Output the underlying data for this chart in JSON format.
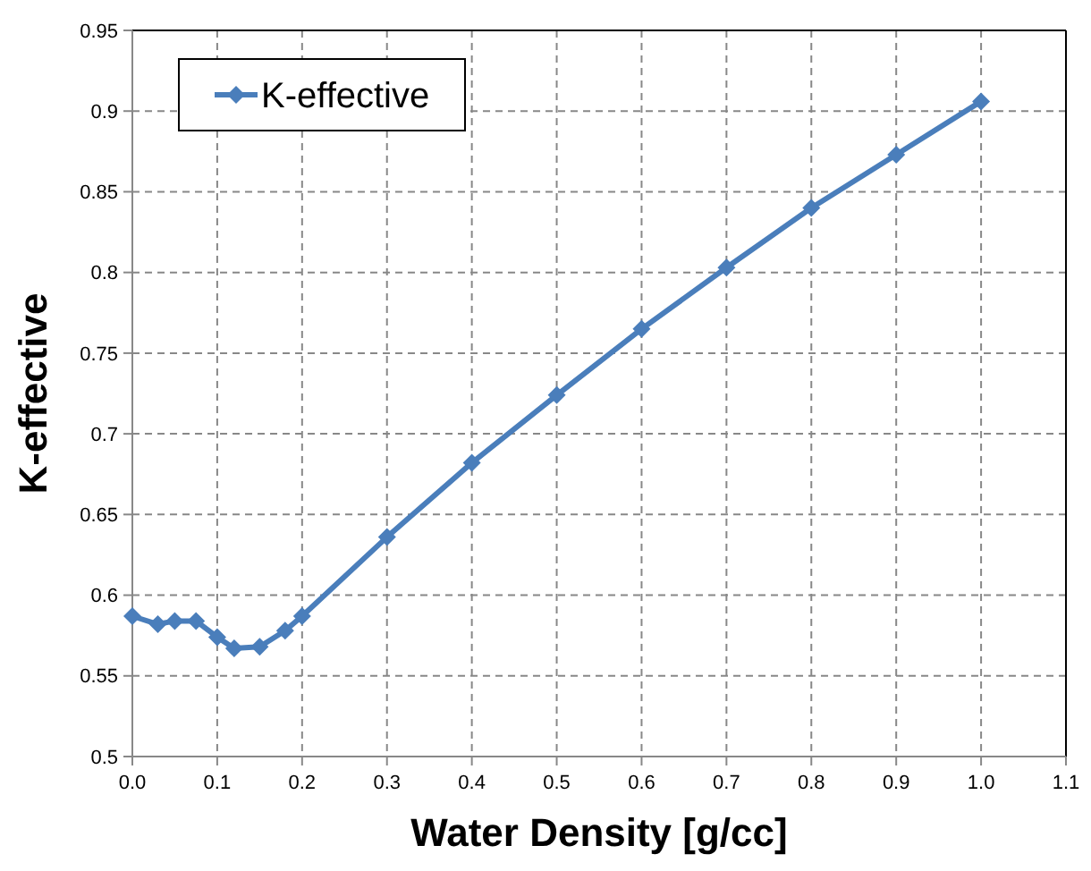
{
  "chart_data": {
    "type": "line",
    "xlabel": "Water Density [g/cc]",
    "ylabel": "K-effective",
    "x": [
      0,
      0.03,
      0.05,
      0.075,
      0.1,
      0.12,
      0.15,
      0.18,
      0.2,
      0.3,
      0.4,
      0.5,
      0.6,
      0.7,
      0.8,
      0.9,
      1.0
    ],
    "series": [
      {
        "name": "K-effective",
        "color": "#4a7ebb",
        "values": [
          0.587,
          0.582,
          0.584,
          0.584,
          0.574,
          0.567,
          0.568,
          0.578,
          0.587,
          0.636,
          0.682,
          0.724,
          0.765,
          0.803,
          0.84,
          0.873,
          0.906
        ]
      }
    ],
    "xlim": [
      0,
      1.1
    ],
    "xticks": [
      {
        "value": 0,
        "label": "0.0"
      },
      0.1,
      0.2,
      0.3,
      0.4,
      0.5,
      0.6,
      0.7,
      0.8,
      0.9,
      {
        "value": 1,
        "label": "1.0"
      },
      1.1
    ],
    "ylim": [
      0.5,
      0.95
    ],
    "yticks": [
      {
        "value": 0.5,
        "label": "0.5"
      },
      0.55,
      {
        "value": 0.6,
        "label": "0.6"
      },
      0.65,
      {
        "value": 0.7,
        "label": "0.7"
      },
      0.75,
      {
        "value": 0.8,
        "label": "0.8"
      },
      0.85,
      {
        "value": 0.9,
        "label": "0.9"
      },
      0.95
    ],
    "grid": true,
    "legend": "top left",
    "marker": "diamond",
    "line_style": "solid"
  }
}
